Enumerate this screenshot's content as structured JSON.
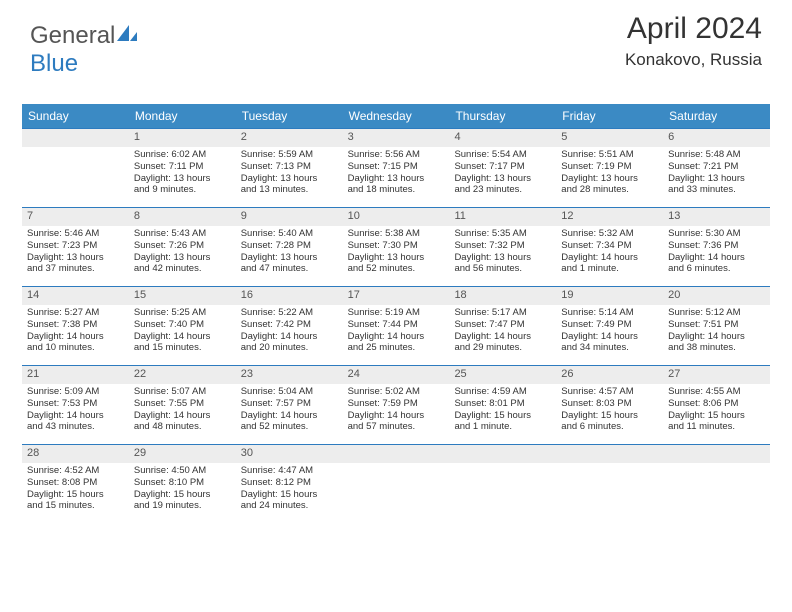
{
  "logo": {
    "part1": "General",
    "part2": "Blue"
  },
  "title": "April 2024",
  "location": "Konakovo, Russia",
  "colors": {
    "header_bg": "#3b8ac4",
    "row_border": "#2d7bbf",
    "daynum_bg": "#ededed",
    "text": "#333333"
  },
  "weekdays": [
    "Sunday",
    "Monday",
    "Tuesday",
    "Wednesday",
    "Thursday",
    "Friday",
    "Saturday"
  ],
  "weeks": [
    [
      {
        "empty": true
      },
      {
        "day": "1",
        "sunrise": "Sunrise: 6:02 AM",
        "sunset": "Sunset: 7:11 PM",
        "dl1": "Daylight: 13 hours",
        "dl2": "and 9 minutes."
      },
      {
        "day": "2",
        "sunrise": "Sunrise: 5:59 AM",
        "sunset": "Sunset: 7:13 PM",
        "dl1": "Daylight: 13 hours",
        "dl2": "and 13 minutes."
      },
      {
        "day": "3",
        "sunrise": "Sunrise: 5:56 AM",
        "sunset": "Sunset: 7:15 PM",
        "dl1": "Daylight: 13 hours",
        "dl2": "and 18 minutes."
      },
      {
        "day": "4",
        "sunrise": "Sunrise: 5:54 AM",
        "sunset": "Sunset: 7:17 PM",
        "dl1": "Daylight: 13 hours",
        "dl2": "and 23 minutes."
      },
      {
        "day": "5",
        "sunrise": "Sunrise: 5:51 AM",
        "sunset": "Sunset: 7:19 PM",
        "dl1": "Daylight: 13 hours",
        "dl2": "and 28 minutes."
      },
      {
        "day": "6",
        "sunrise": "Sunrise: 5:48 AM",
        "sunset": "Sunset: 7:21 PM",
        "dl1": "Daylight: 13 hours",
        "dl2": "and 33 minutes."
      }
    ],
    [
      {
        "day": "7",
        "sunrise": "Sunrise: 5:46 AM",
        "sunset": "Sunset: 7:23 PM",
        "dl1": "Daylight: 13 hours",
        "dl2": "and 37 minutes."
      },
      {
        "day": "8",
        "sunrise": "Sunrise: 5:43 AM",
        "sunset": "Sunset: 7:26 PM",
        "dl1": "Daylight: 13 hours",
        "dl2": "and 42 minutes."
      },
      {
        "day": "9",
        "sunrise": "Sunrise: 5:40 AM",
        "sunset": "Sunset: 7:28 PM",
        "dl1": "Daylight: 13 hours",
        "dl2": "and 47 minutes."
      },
      {
        "day": "10",
        "sunrise": "Sunrise: 5:38 AM",
        "sunset": "Sunset: 7:30 PM",
        "dl1": "Daylight: 13 hours",
        "dl2": "and 52 minutes."
      },
      {
        "day": "11",
        "sunrise": "Sunrise: 5:35 AM",
        "sunset": "Sunset: 7:32 PM",
        "dl1": "Daylight: 13 hours",
        "dl2": "and 56 minutes."
      },
      {
        "day": "12",
        "sunrise": "Sunrise: 5:32 AM",
        "sunset": "Sunset: 7:34 PM",
        "dl1": "Daylight: 14 hours",
        "dl2": "and 1 minute."
      },
      {
        "day": "13",
        "sunrise": "Sunrise: 5:30 AM",
        "sunset": "Sunset: 7:36 PM",
        "dl1": "Daylight: 14 hours",
        "dl2": "and 6 minutes."
      }
    ],
    [
      {
        "day": "14",
        "sunrise": "Sunrise: 5:27 AM",
        "sunset": "Sunset: 7:38 PM",
        "dl1": "Daylight: 14 hours",
        "dl2": "and 10 minutes."
      },
      {
        "day": "15",
        "sunrise": "Sunrise: 5:25 AM",
        "sunset": "Sunset: 7:40 PM",
        "dl1": "Daylight: 14 hours",
        "dl2": "and 15 minutes."
      },
      {
        "day": "16",
        "sunrise": "Sunrise: 5:22 AM",
        "sunset": "Sunset: 7:42 PM",
        "dl1": "Daylight: 14 hours",
        "dl2": "and 20 minutes."
      },
      {
        "day": "17",
        "sunrise": "Sunrise: 5:19 AM",
        "sunset": "Sunset: 7:44 PM",
        "dl1": "Daylight: 14 hours",
        "dl2": "and 25 minutes."
      },
      {
        "day": "18",
        "sunrise": "Sunrise: 5:17 AM",
        "sunset": "Sunset: 7:47 PM",
        "dl1": "Daylight: 14 hours",
        "dl2": "and 29 minutes."
      },
      {
        "day": "19",
        "sunrise": "Sunrise: 5:14 AM",
        "sunset": "Sunset: 7:49 PM",
        "dl1": "Daylight: 14 hours",
        "dl2": "and 34 minutes."
      },
      {
        "day": "20",
        "sunrise": "Sunrise: 5:12 AM",
        "sunset": "Sunset: 7:51 PM",
        "dl1": "Daylight: 14 hours",
        "dl2": "and 38 minutes."
      }
    ],
    [
      {
        "day": "21",
        "sunrise": "Sunrise: 5:09 AM",
        "sunset": "Sunset: 7:53 PM",
        "dl1": "Daylight: 14 hours",
        "dl2": "and 43 minutes."
      },
      {
        "day": "22",
        "sunrise": "Sunrise: 5:07 AM",
        "sunset": "Sunset: 7:55 PM",
        "dl1": "Daylight: 14 hours",
        "dl2": "and 48 minutes."
      },
      {
        "day": "23",
        "sunrise": "Sunrise: 5:04 AM",
        "sunset": "Sunset: 7:57 PM",
        "dl1": "Daylight: 14 hours",
        "dl2": "and 52 minutes."
      },
      {
        "day": "24",
        "sunrise": "Sunrise: 5:02 AM",
        "sunset": "Sunset: 7:59 PM",
        "dl1": "Daylight: 14 hours",
        "dl2": "and 57 minutes."
      },
      {
        "day": "25",
        "sunrise": "Sunrise: 4:59 AM",
        "sunset": "Sunset: 8:01 PM",
        "dl1": "Daylight: 15 hours",
        "dl2": "and 1 minute."
      },
      {
        "day": "26",
        "sunrise": "Sunrise: 4:57 AM",
        "sunset": "Sunset: 8:03 PM",
        "dl1": "Daylight: 15 hours",
        "dl2": "and 6 minutes."
      },
      {
        "day": "27",
        "sunrise": "Sunrise: 4:55 AM",
        "sunset": "Sunset: 8:06 PM",
        "dl1": "Daylight: 15 hours",
        "dl2": "and 11 minutes."
      }
    ],
    [
      {
        "day": "28",
        "sunrise": "Sunrise: 4:52 AM",
        "sunset": "Sunset: 8:08 PM",
        "dl1": "Daylight: 15 hours",
        "dl2": "and 15 minutes."
      },
      {
        "day": "29",
        "sunrise": "Sunrise: 4:50 AM",
        "sunset": "Sunset: 8:10 PM",
        "dl1": "Daylight: 15 hours",
        "dl2": "and 19 minutes."
      },
      {
        "day": "30",
        "sunrise": "Sunrise: 4:47 AM",
        "sunset": "Sunset: 8:12 PM",
        "dl1": "Daylight: 15 hours",
        "dl2": "and 24 minutes."
      },
      {
        "empty": true
      },
      {
        "empty": true
      },
      {
        "empty": true
      },
      {
        "empty": true
      }
    ]
  ]
}
